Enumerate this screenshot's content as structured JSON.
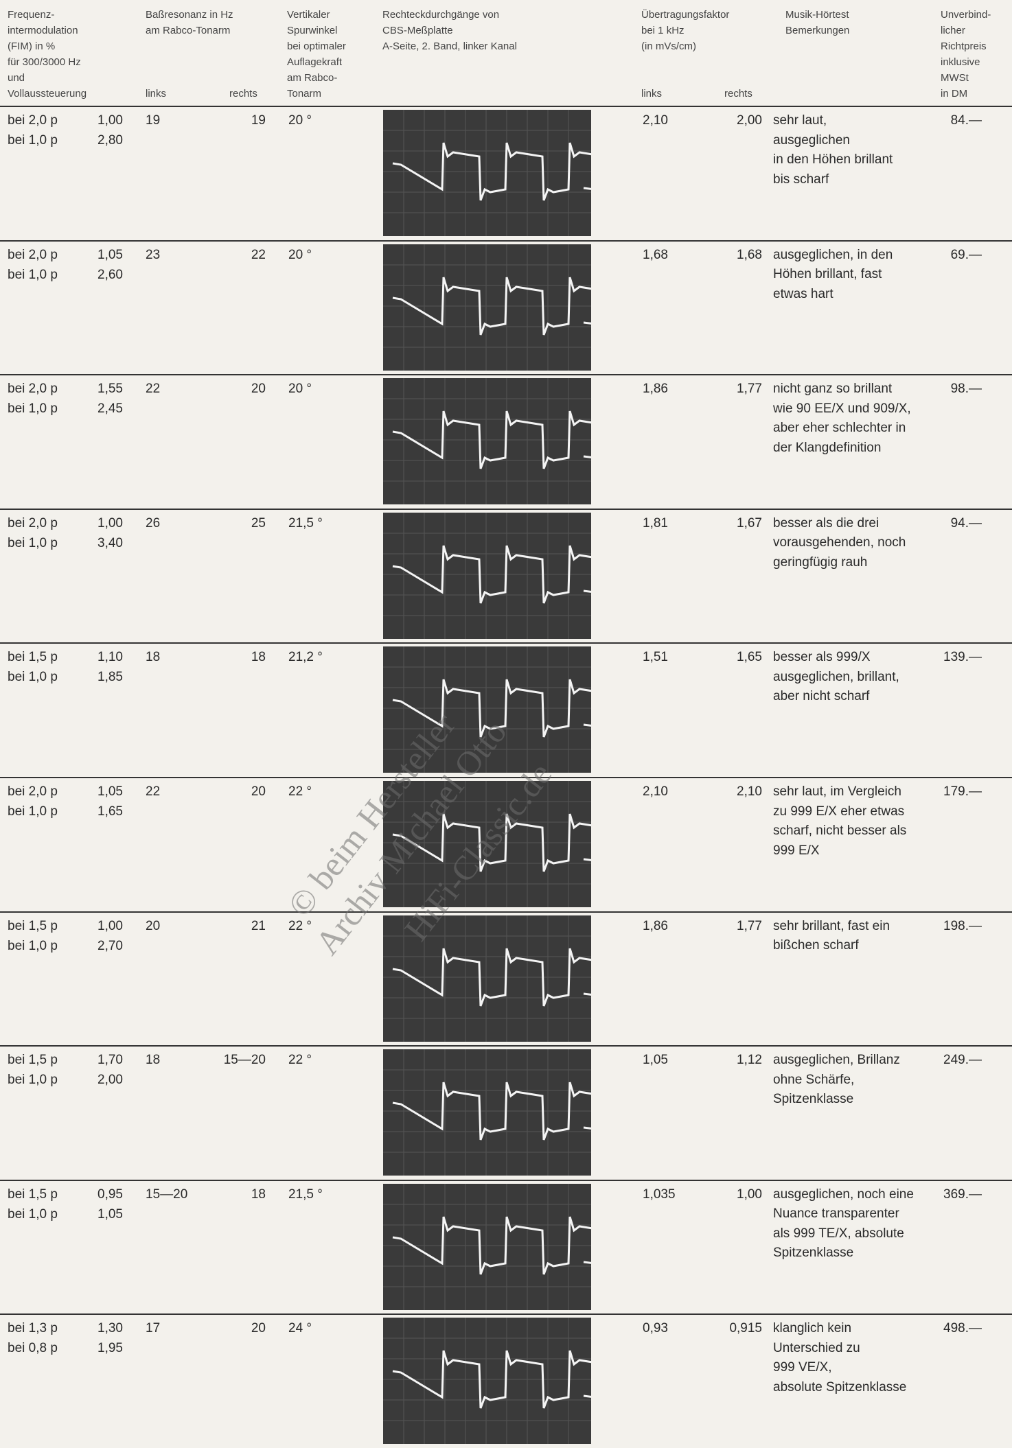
{
  "header": {
    "columns": [
      [
        "Frequenz-",
        "intermodulation",
        "(FIM) in %",
        "für 300/3000 Hz",
        "und",
        "Vollaussteuerung"
      ],
      [
        "Baßresonanz in Hz",
        "am Rabco-Tonarm"
      ],
      [
        "Vertikaler",
        "Spurwinkel",
        "bei optimaler",
        "Auflagekraft",
        "am Rabco-",
        "Tonarm"
      ],
      [
        "Rechteckdurchgänge von",
        "CBS-Meßplatte",
        "A-Seite, 2. Band, linker Kanal"
      ],
      [
        "Übertragungsfaktor",
        "bei 1 kHz",
        "(in mVs/cm)"
      ],
      [
        "Musik-Hörtest",
        "Bemerkungen"
      ],
      [
        "Unverbind-",
        "licher",
        "Richtpreis",
        "inklusive",
        "MWSt",
        "in DM"
      ]
    ],
    "bass_sub": [
      "links",
      "rechts"
    ],
    "uf_sub": [
      "links",
      "rechts"
    ]
  },
  "rows": [
    {
      "fim": [
        [
          "bei 2,0 p",
          "1,00"
        ],
        [
          "bei 1,0 p",
          "2,80"
        ]
      ],
      "bass": [
        "19",
        "19"
      ],
      "angle": "20 °",
      "uf": [
        "2,10",
        "2,00"
      ],
      "remarks": [
        "sehr laut,",
        "ausgeglichen",
        "in den Höhen brillant",
        "bis scharf"
      ],
      "price": "84.—"
    },
    {
      "fim": [
        [
          "bei 2,0 p",
          "1,05"
        ],
        [
          "bei 1,0 p",
          "2,60"
        ]
      ],
      "bass": [
        "23",
        "22"
      ],
      "angle": "20 °",
      "uf": [
        "1,68",
        "1,68"
      ],
      "remarks": [
        "ausgeglichen, in den",
        "Höhen brillant, fast",
        "etwas hart"
      ],
      "price": "69.—"
    },
    {
      "fim": [
        [
          "bei 2,0 p",
          "1,55"
        ],
        [
          "bei 1,0 p",
          "2,45"
        ]
      ],
      "bass": [
        "22",
        "20"
      ],
      "angle": "20 °",
      "uf": [
        "1,86",
        "1,77"
      ],
      "remarks": [
        "nicht ganz so brillant",
        "wie 90 EE/X und 909/X,",
        "aber eher schlechter in",
        "der Klangdefinition"
      ],
      "price": "98.—"
    },
    {
      "fim": [
        [
          "bei 2,0 p",
          "1,00"
        ],
        [
          "bei 1,0 p",
          "3,40"
        ]
      ],
      "bass": [
        "26",
        "25"
      ],
      "angle": "21,5 °",
      "uf": [
        "1,81",
        "1,67"
      ],
      "remarks": [
        "besser als die drei",
        "vorausgehenden, noch",
        "geringfügig rauh"
      ],
      "price": "94.—"
    },
    {
      "fim": [
        [
          "bei 1,5 p",
          "1,10"
        ],
        [
          "bei 1,0 p",
          "1,85"
        ]
      ],
      "bass": [
        "18",
        "18"
      ],
      "angle": "21,2 °",
      "uf": [
        "1,51",
        "1,65"
      ],
      "remarks": [
        "besser als 999/X",
        "ausgeglichen, brillant,",
        "aber nicht scharf"
      ],
      "price": "139.—"
    },
    {
      "fim": [
        [
          "bei 2,0 p",
          "1,05"
        ],
        [
          "bei 1,0 p",
          "1,65"
        ]
      ],
      "bass": [
        "22",
        "20"
      ],
      "angle": "22 °",
      "uf": [
        "2,10",
        "2,10"
      ],
      "remarks": [
        "sehr laut, im Vergleich",
        "zu 999 E/X eher etwas",
        "scharf, nicht besser als",
        "999 E/X"
      ],
      "price": "179.—"
    },
    {
      "fim": [
        [
          "bei 1,5 p",
          "1,00"
        ],
        [
          "bei 1,0 p",
          "2,70"
        ]
      ],
      "bass": [
        "20",
        "21"
      ],
      "angle": "22 °",
      "uf": [
        "1,86",
        "1,77"
      ],
      "remarks": [
        "sehr brillant, fast ein",
        "bißchen scharf"
      ],
      "price": "198.—"
    },
    {
      "fim": [
        [
          "bei 1,5 p",
          "1,70"
        ],
        [
          "bei 1,0 p",
          "2,00"
        ]
      ],
      "bass": [
        "18",
        "15—20"
      ],
      "angle": "22 °",
      "uf": [
        "1,05",
        "1,12"
      ],
      "remarks": [
        "ausgeglichen, Brillanz",
        "ohne Schärfe,",
        "Spitzenklasse"
      ],
      "price": "249.—"
    },
    {
      "fim": [
        [
          "bei 1,5 p",
          "0,95"
        ],
        [
          "bei 1,0 p",
          "1,05"
        ]
      ],
      "bass": [
        "15—20",
        "18"
      ],
      "angle": "21,5 °",
      "uf": [
        "1,035",
        "1,00"
      ],
      "remarks": [
        "ausgeglichen, noch eine",
        "Nuance transparenter",
        "als 999 TE/X, absolute",
        "Spitzenklasse"
      ],
      "price": "369.—"
    },
    {
      "fim": [
        [
          "bei 1,3 p",
          "1,30"
        ],
        [
          "bei 0,8 p",
          "1,95"
        ]
      ],
      "bass": [
        "17",
        "20"
      ],
      "angle": "24 °",
      "uf": [
        "0,93",
        "0,915"
      ],
      "remarks": [
        "klanglich kein",
        "Unterschied zu",
        "999 VE/X,",
        "absolute Spitzenklasse"
      ],
      "price": "498.—"
    }
  ],
  "watermark": [
    "© beim Hersteller",
    "Archiv Michael Otto",
    "HiFi-Classic.de"
  ]
}
